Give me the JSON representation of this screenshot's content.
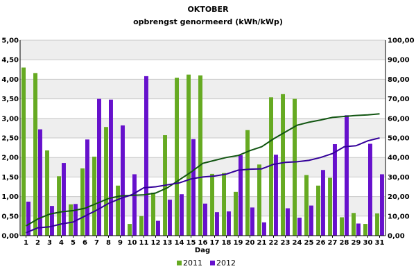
{
  "chart_data": {
    "type": "bar",
    "title": "OKTOBER",
    "subtitle": "opbrengst genormeerd (kWh/kWp)",
    "xlabel": "Dag",
    "ylabel_left": "",
    "ylabel_right": "",
    "categories": [
      "1",
      "2",
      "3",
      "4",
      "5",
      "6",
      "7",
      "8",
      "9",
      "10",
      "11",
      "12",
      "13",
      "14",
      "15",
      "16",
      "17",
      "18",
      "19",
      "20",
      "21",
      "22",
      "23",
      "24",
      "25",
      "26",
      "27",
      "28",
      "29",
      "30",
      "31"
    ],
    "ylim": [
      0,
      5
    ],
    "yticks": [
      "0,00",
      "0,50",
      "1,00",
      "1,50",
      "2,00",
      "2,50",
      "3,00",
      "3,50",
      "4,00",
      "4,50",
      "5,00"
    ],
    "ylim_right": [
      0,
      100
    ],
    "yticks_right": [
      "0,00",
      "10,00",
      "20,00",
      "30,00",
      "40,00",
      "50,00",
      "60,00",
      "70,00",
      "80,00",
      "90,00",
      "100,00"
    ],
    "grid": "horizontal bands",
    "legend_position": "bottom",
    "series": [
      {
        "name": "2011",
        "kind": "bar",
        "axis": "left",
        "color": "#66aa22",
        "values": [
          4.3,
          4.16,
          2.18,
          1.52,
          0.8,
          1.72,
          2.02,
          2.78,
          1.28,
          0.3,
          0.5,
          1.1,
          2.57,
          4.04,
          4.12,
          4.1,
          1.58,
          1.6,
          1.12,
          2.7,
          1.82,
          3.54,
          3.62,
          3.5,
          1.55,
          1.28,
          1.48,
          0.47,
          0.58,
          0.3,
          0.57
        ]
      },
      {
        "name": "2012",
        "kind": "bar",
        "axis": "left",
        "color": "#6611cc",
        "values": [
          0.87,
          2.72,
          0.76,
          1.86,
          0.81,
          2.46,
          3.5,
          3.48,
          2.82,
          1.57,
          4.08,
          0.38,
          0.92,
          1.06,
          2.47,
          0.82,
          0.6,
          0.62,
          2.06,
          0.72,
          0.34,
          2.07,
          0.7,
          0.46,
          0.77,
          1.68,
          2.34,
          3.08,
          0.31,
          2.35,
          1.57
        ]
      },
      {
        "name": "2011",
        "kind": "line",
        "axis": "right",
        "color": "#115511",
        "values": [
          5.0,
          8.5,
          11.0,
          12.2,
          12.8,
          14.0,
          16.5,
          19.0,
          20.3,
          20.6,
          20.9,
          21.8,
          24.5,
          28.5,
          32.5,
          37.0,
          38.5,
          40.0,
          41.0,
          43.5,
          45.5,
          49.5,
          53.0,
          56.5,
          58.0,
          59.2,
          60.5,
          61.0,
          61.5,
          61.8,
          62.3
        ]
      },
      {
        "name": "2012",
        "kind": "line",
        "axis": "right",
        "color": "#330099",
        "values": [
          1.5,
          4.0,
          4.5,
          6.0,
          7.0,
          10.0,
          13.0,
          16.5,
          19.0,
          21.0,
          24.5,
          25.0,
          26.0,
          27.0,
          29.0,
          30.0,
          30.5,
          31.5,
          33.5,
          34.0,
          34.2,
          36.5,
          37.5,
          37.8,
          38.5,
          40.0,
          42.0,
          45.5,
          46.0,
          48.5,
          50.0
        ]
      }
    ],
    "legend": [
      {
        "label": "2011",
        "color": "#66aa22"
      },
      {
        "label": "2012",
        "color": "#6611cc"
      }
    ]
  }
}
